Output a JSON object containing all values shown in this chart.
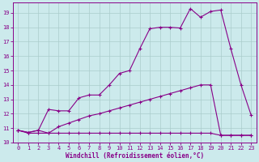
{
  "bg_color": "#cceaec",
  "line_color": "#880088",
  "grid_color": "#aacccc",
  "xlabel": "Windchill (Refroidissement éolien,°C)",
  "tick_color": "#880088",
  "xlim": [
    -0.5,
    23.5
  ],
  "ylim": [
    10.0,
    19.7
  ],
  "yticks": [
    10,
    11,
    12,
    13,
    14,
    15,
    16,
    17,
    18,
    19
  ],
  "xticks": [
    0,
    1,
    2,
    3,
    4,
    5,
    6,
    7,
    8,
    9,
    10,
    11,
    12,
    13,
    14,
    15,
    16,
    17,
    18,
    19,
    20,
    21,
    22,
    23
  ],
  "line1_x": [
    0,
    1,
    2,
    3,
    4,
    5,
    6,
    7,
    8,
    9,
    10,
    11,
    12,
    13,
    14,
    15,
    16,
    17,
    18,
    19,
    20,
    21,
    22,
    23
  ],
  "line1_y": [
    10.85,
    10.7,
    10.85,
    12.3,
    12.2,
    12.2,
    13.1,
    13.3,
    13.3,
    14.0,
    14.8,
    15.0,
    16.5,
    17.9,
    18.0,
    18.0,
    17.95,
    19.3,
    18.7,
    19.1,
    19.2,
    16.5,
    14.0,
    11.9
  ],
  "line2_x": [
    0,
    1,
    2,
    3,
    4,
    5,
    6,
    7,
    8,
    9,
    10,
    11,
    12,
    13,
    14,
    15,
    16,
    17,
    18,
    19,
    20,
    21,
    22,
    23
  ],
  "line2_y": [
    10.85,
    10.7,
    10.85,
    10.65,
    11.1,
    11.35,
    11.6,
    11.85,
    12.0,
    12.2,
    12.4,
    12.6,
    12.8,
    13.0,
    13.2,
    13.4,
    13.6,
    13.8,
    14.0,
    14.0,
    10.5,
    10.5,
    10.5,
    10.5
  ],
  "line3_x": [
    0,
    1,
    2,
    3,
    4,
    5,
    6,
    7,
    8,
    9,
    10,
    11,
    12,
    13,
    14,
    15,
    16,
    17,
    18,
    19,
    20,
    21,
    22,
    23
  ],
  "line3_y": [
    10.85,
    10.65,
    10.65,
    10.65,
    10.65,
    10.65,
    10.65,
    10.65,
    10.65,
    10.65,
    10.65,
    10.65,
    10.65,
    10.65,
    10.65,
    10.65,
    10.65,
    10.65,
    10.65,
    10.65,
    10.5,
    10.5,
    10.5,
    10.5
  ]
}
